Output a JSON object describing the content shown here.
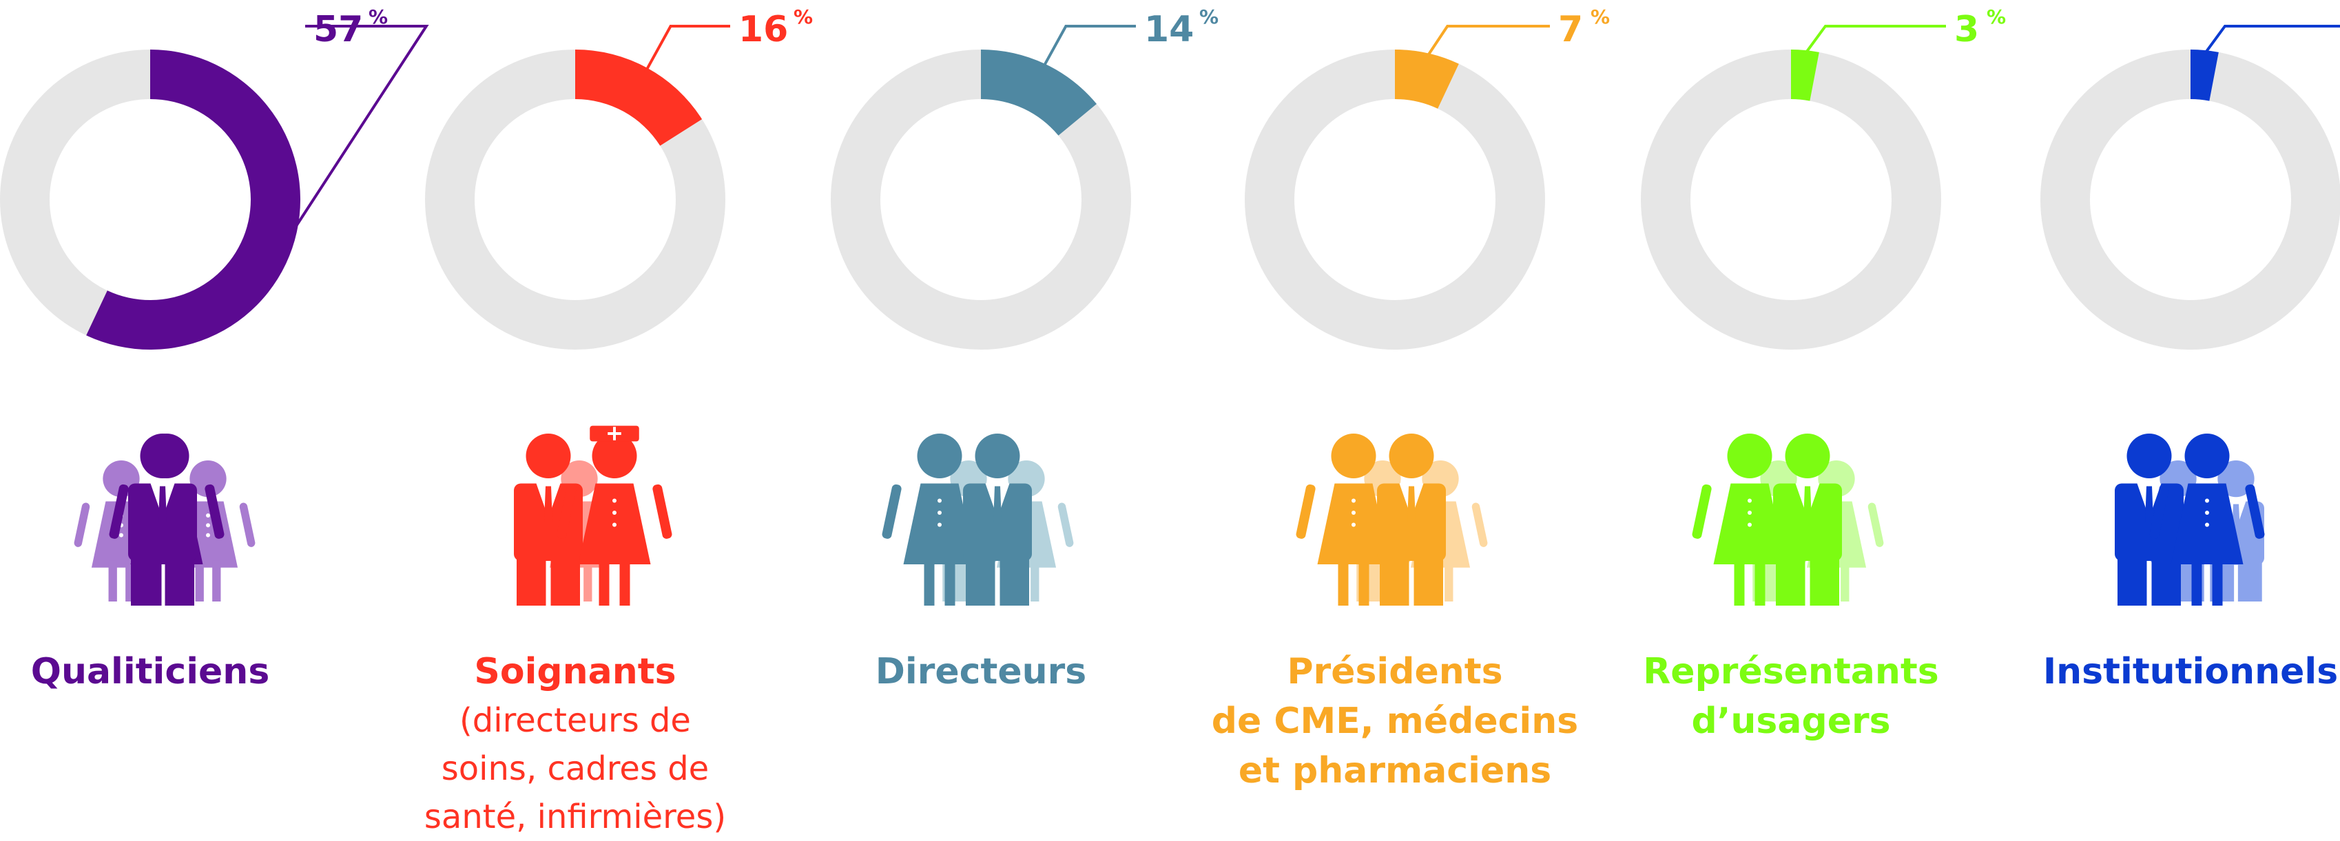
{
  "chart_data": {
    "type": "pie",
    "style": "donut",
    "track_color": "#e6e6e6",
    "percent_symbol": "%",
    "segments": [
      {
        "title": "Qualiticiens",
        "value": 57,
        "color": "#5b0a91",
        "light": "#a87bd0",
        "subtitle": []
      },
      {
        "title": "Soignants",
        "value": 16,
        "color": "#ff3323",
        "light": "#ff9a92",
        "subtitle": [
          "(directeurs de",
          "soins, cadres de",
          "santé, infirmières)"
        ]
      },
      {
        "title": "Directeurs",
        "value": 14,
        "color": "#4f88a2",
        "light": "#b5d3dd",
        "subtitle": []
      },
      {
        "title": "Présidents",
        "value": 7,
        "color": "#f9a825",
        "light": "#fdd8a0",
        "subtitle_bold": [
          "de CME, médecins",
          "et pharmaciens"
        ],
        "subtitle": []
      },
      {
        "title": "Représentants",
        "value": 3,
        "color": "#7cfc12",
        "light": "#c8fca0",
        "subtitle_bold": [
          "d’usagers"
        ],
        "subtitle": []
      },
      {
        "title": "Institutionnels",
        "value": 3,
        "color": "#0b3bd1",
        "light": "#8aa3ec",
        "subtitle": []
      }
    ]
  }
}
